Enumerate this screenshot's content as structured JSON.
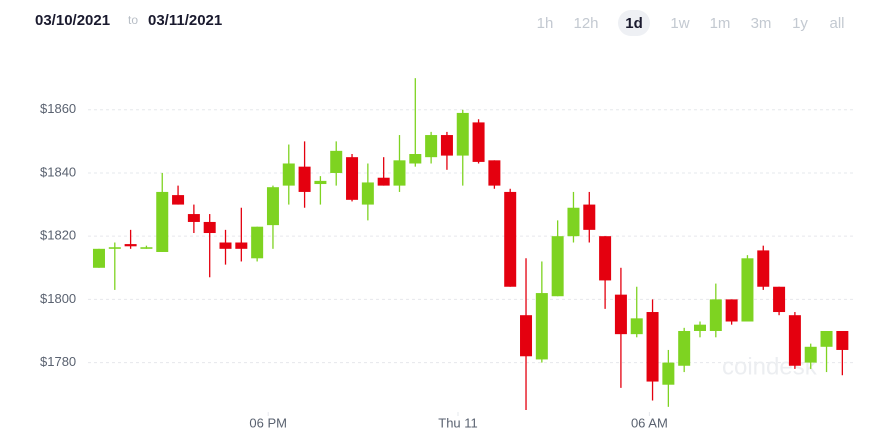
{
  "date_range": {
    "from": "03/10/2021",
    "separator": "to",
    "to": "03/11/2021"
  },
  "range_buttons": [
    "1h",
    "12h",
    "1d",
    "1w",
    "1m",
    "3m",
    "1y",
    "all"
  ],
  "active_range": "1d",
  "chart_data": {
    "type": "candlestick",
    "watermark": "coindesk",
    "up_color": "#7ed321",
    "down_color": "#e4000f",
    "x": [
      0,
      1,
      2,
      3,
      4,
      5,
      6,
      7,
      8,
      9,
      10,
      11,
      12,
      13,
      14,
      15,
      16,
      17,
      18,
      19,
      20,
      21,
      22,
      23,
      24,
      25,
      26,
      27,
      28,
      29,
      30,
      31,
      32,
      33,
      34,
      35,
      36,
      37,
      38,
      39,
      40,
      41,
      42,
      43,
      44,
      45,
      46,
      47
    ],
    "open": [
      1810,
      1816,
      1817.5,
      1816,
      1815,
      1833,
      1827,
      1824.5,
      1818,
      1818,
      1813,
      1823.5,
      1836,
      1842,
      1836.5,
      1840,
      1845,
      1830,
      1838.5,
      1836,
      1843,
      1845,
      1852,
      1845.5,
      1856,
      1844,
      1834,
      1795,
      1781,
      1801,
      1820,
      1830,
      1820,
      1801.5,
      1789,
      1796,
      1773,
      1779,
      1790,
      1790,
      1800,
      1793,
      1815.5,
      1804,
      1795,
      1780,
      1785,
      1790
    ],
    "high": [
      1816,
      1818,
      1822,
      1817,
      1840,
      1836,
      1830,
      1827,
      1822,
      1829,
      1823,
      1836,
      1849,
      1850,
      1839,
      1850,
      1846,
      1843,
      1845,
      1852,
      1870,
      1853,
      1853,
      1860,
      1857,
      1844,
      1835,
      1813,
      1812,
      1825,
      1834,
      1834,
      1820,
      1810,
      1804,
      1800,
      1784,
      1791,
      1793,
      1805,
      1800,
      1814,
      1817,
      1804,
      1796,
      1786,
      1790,
      1790
    ],
    "low": [
      1810,
      1803,
      1816,
      1816,
      1815,
      1830,
      1821,
      1807,
      1811,
      1812,
      1812,
      1816,
      1830,
      1829,
      1830,
      1836,
      1831,
      1825,
      1836,
      1834,
      1842,
      1843,
      1841,
      1836,
      1843,
      1835,
      1804,
      1765,
      1780,
      1801,
      1818,
      1818,
      1797,
      1772,
      1788,
      1768,
      1766,
      1777,
      1788,
      1788,
      1792,
      1793,
      1803,
      1795,
      1778,
      1778,
      1777,
      1776
    ],
    "close": [
      1816,
      1816.5,
      1816.8,
      1816.5,
      1834,
      1830,
      1824.5,
      1821,
      1816,
      1816,
      1823,
      1835.5,
      1843,
      1834,
      1837.5,
      1847,
      1831.5,
      1837,
      1836,
      1844,
      1846,
      1852,
      1845.5,
      1859,
      1843.5,
      1836,
      1804,
      1782,
      1802,
      1820,
      1829,
      1822,
      1806,
      1789,
      1794,
      1774,
      1780,
      1790,
      1792,
      1800,
      1793,
      1813,
      1804,
      1796,
      1779,
      1785,
      1790,
      1784
    ],
    "xlim": [
      -1.2,
      47.8
    ],
    "xticks": [
      {
        "value": 10.7,
        "label": "06 PM"
      },
      {
        "value": 22.7,
        "label": "Thu 11"
      },
      {
        "value": 34.8,
        "label": "06 AM"
      }
    ],
    "ylim": [
      1765,
      1871
    ],
    "yticks": [
      {
        "value": 1780,
        "label": "$1780"
      },
      {
        "value": 1800,
        "label": "$1800"
      },
      {
        "value": 1820,
        "label": "$1820"
      },
      {
        "value": 1840,
        "label": "$1840"
      },
      {
        "value": 1860,
        "label": "$1860"
      }
    ],
    "grid": true
  }
}
